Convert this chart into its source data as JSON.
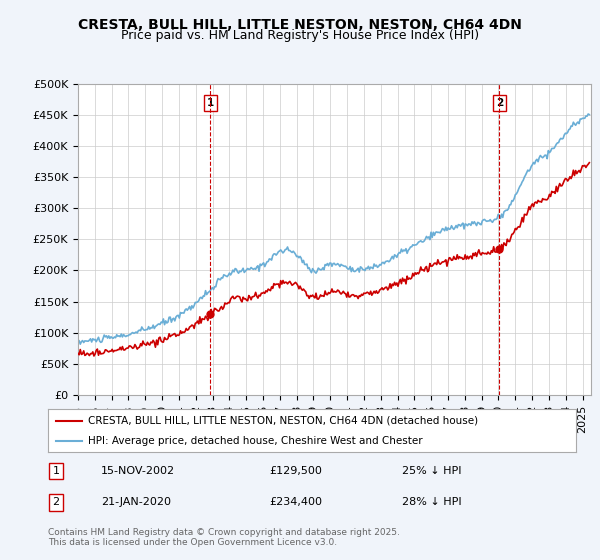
{
  "title": "CRESTA, BULL HILL, LITTLE NESTON, NESTON, CH64 4DN",
  "subtitle": "Price paid vs. HM Land Registry's House Price Index (HPI)",
  "ytick_values": [
    0,
    50000,
    100000,
    150000,
    200000,
    250000,
    300000,
    350000,
    400000,
    450000,
    500000
  ],
  "ylim": [
    0,
    500000
  ],
  "xlim_start": 1995.0,
  "xlim_end": 2025.5,
  "hpi_color": "#6aaed6",
  "price_color": "#cc0000",
  "sale1_x": 2002.87,
  "sale1_y": 129500,
  "sale1_label": "1",
  "sale2_x": 2020.05,
  "sale2_y": 234400,
  "sale2_label": "2",
  "vline_color": "#cc0000",
  "annotation1_date": "15-NOV-2002",
  "annotation1_price": "£129,500",
  "annotation1_pct": "25% ↓ HPI",
  "annotation2_date": "21-JAN-2020",
  "annotation2_price": "£234,400",
  "annotation2_pct": "28% ↓ HPI",
  "legend_label1": "CRESTA, BULL HILL, LITTLE NESTON, NESTON, CH64 4DN (detached house)",
  "legend_label2": "HPI: Average price, detached house, Cheshire West and Chester",
  "footer": "Contains HM Land Registry data © Crown copyright and database right 2025.\nThis data is licensed under the Open Government Licence v3.0.",
  "background_color": "#f0f4fa",
  "plot_bg_color": "#ffffff",
  "grid_color": "#cccccc",
  "title_fontsize": 10,
  "subtitle_fontsize": 9,
  "tick_fontsize": 8,
  "legend_fontsize": 7.5,
  "footer_fontsize": 6.5,
  "hpi_key_x": [
    1995.0,
    1996.0,
    1997.0,
    1998.0,
    1999.0,
    2000.0,
    2001.0,
    2002.0,
    2003.0,
    2004.0,
    2005.0,
    2006.0,
    2007.0,
    2008.0,
    2009.0,
    2010.0,
    2011.0,
    2012.0,
    2013.0,
    2014.0,
    2015.0,
    2016.0,
    2017.0,
    2018.0,
    2019.0,
    2020.0,
    2021.0,
    2022.0,
    2023.0,
    2024.0,
    2025.0,
    2025.5
  ],
  "hpi_key_y": [
    85000,
    88000,
    92000,
    97000,
    105000,
    115000,
    128000,
    148000,
    172000,
    195000,
    200000,
    210000,
    230000,
    225000,
    200000,
    210000,
    205000,
    202000,
    210000,
    225000,
    240000,
    255000,
    268000,
    272000,
    278000,
    285000,
    320000,
    370000,
    390000,
    420000,
    445000,
    455000
  ]
}
